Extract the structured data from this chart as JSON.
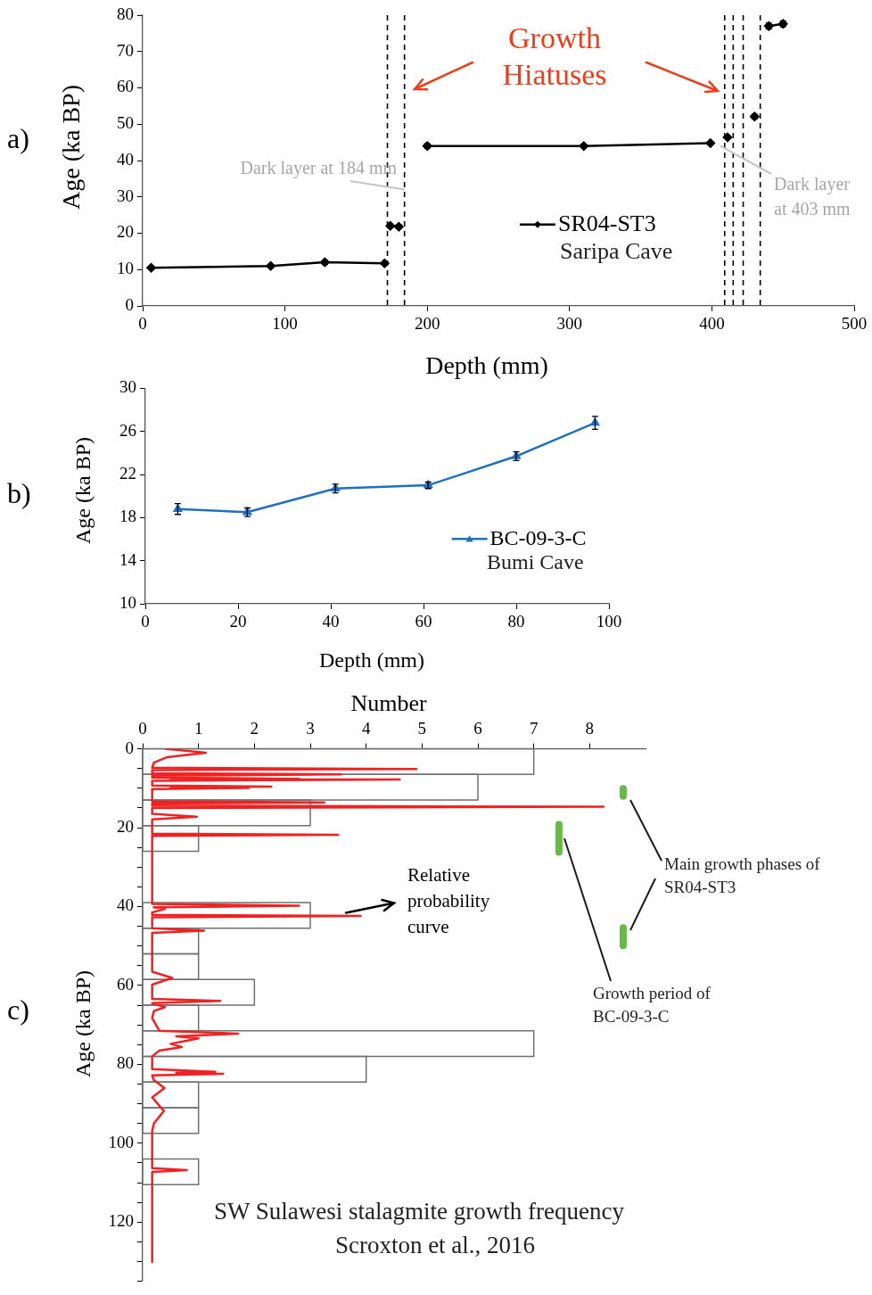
{
  "chart_data": [
    {
      "type": "line",
      "title": "a)",
      "xlabel": "Depth (mm)",
      "ylabel": "Age (ka BP)",
      "xlim": [
        0,
        500
      ],
      "xticks": [
        0,
        100,
        200,
        300,
        400,
        500
      ],
      "ylim": [
        0,
        80
      ],
      "yticks": [
        0,
        10,
        20,
        30,
        40,
        50,
        60,
        70,
        80
      ],
      "marker": "diamond",
      "legend": "bottom right",
      "series": [
        {
          "name": "SR04-ST3",
          "color": "#000000",
          "x": [
            6,
            90,
            128,
            170,
            172,
            174,
            180,
            190,
            200,
            310,
            399,
            405,
            411,
            420,
            430,
            435,
            440,
            450
          ],
          "values": [
            10.5,
            11,
            12,
            11.7,
            null,
            22,
            21.8,
            null,
            44,
            44,
            44.8,
            null,
            46.4,
            null,
            52.1,
            null,
            77,
            77.6
          ],
          "errors": [
            null,
            null,
            0.6,
            null,
            null,
            0.5,
            0.5,
            null,
            0.6,
            null,
            null,
            null,
            null,
            null,
            0.6,
            null,
            0.8,
            0.8
          ]
        }
      ],
      "ref_lines": [
        {
          "axis": "x",
          "value": 172,
          "color": "#000000",
          "line_style": "dashed"
        },
        {
          "axis": "x",
          "value": 184,
          "color": "#000000",
          "line_style": "dashed"
        },
        {
          "axis": "x",
          "value": 409,
          "color": "#000000",
          "line_style": "dashed"
        },
        {
          "axis": "x",
          "value": 415,
          "color": "#000000",
          "line_style": "dashed"
        },
        {
          "axis": "x",
          "value": 422,
          "color": "#000000",
          "line_style": "dashed"
        },
        {
          "axis": "x",
          "value": 434,
          "color": "#000000",
          "line_style": "dashed"
        }
      ],
      "annotations": [
        "Growth Hiatuses",
        {
          "text": "Dark layer at 184 mm",
          "x": 184,
          "y": 32
        },
        {
          "text": "Dark layer at 403 mm",
          "x": 406,
          "y": 44
        },
        "Saripa Cave"
      ]
    },
    {
      "type": "line",
      "title": "b)",
      "xlabel": "Depth (mm)",
      "ylabel": "Age (ka BP)",
      "xlim": [
        0,
        100
      ],
      "xticks": [
        0,
        20,
        40,
        60,
        80,
        100
      ],
      "ylim": [
        10,
        30
      ],
      "yticks": [
        10,
        14,
        18,
        22,
        26,
        30
      ],
      "marker": "triangle",
      "legend": "bottom right",
      "series": [
        {
          "name": "BC-09-3-C",
          "color": "#2070c0",
          "x": [
            7,
            22,
            41,
            61,
            80,
            97
          ],
          "values": [
            18.8,
            18.5,
            20.7,
            21.0,
            23.7,
            26.8
          ],
          "errors": [
            0.5,
            0.4,
            0.4,
            0.3,
            0.4,
            0.6
          ]
        }
      ],
      "annotations": [
        "Bumi Cave"
      ]
    },
    {
      "type": "histogram",
      "orientation": "horizontal",
      "title": "c)",
      "xlabel": "Number",
      "ylabel": "Age (ka BP)",
      "xlim": [
        0,
        9
      ],
      "xticks": [
        0,
        1,
        2,
        3,
        4,
        5,
        6,
        7,
        8
      ],
      "ylim": [
        135,
        0
      ],
      "yticks": [
        0,
        {
          "value": 5,
          "label": null
        },
        {
          "value": 10,
          "label": null
        },
        {
          "value": 15,
          "label": null
        },
        20,
        {
          "value": 25,
          "label": null
        },
        {
          "value": 30,
          "label": null
        },
        {
          "value": 35,
          "label": null
        },
        40,
        {
          "value": 45,
          "label": null
        },
        {
          "value": 50,
          "label": null
        },
        {
          "value": 55,
          "label": null
        },
        60,
        {
          "value": 65,
          "label": null
        },
        {
          "value": 70,
          "label": null
        },
        {
          "value": 75,
          "label": null
        },
        80,
        {
          "value": 85,
          "label": null
        },
        {
          "value": 90,
          "label": null
        },
        {
          "value": 95,
          "label": null
        },
        100,
        {
          "value": 105,
          "label": null
        },
        {
          "value": 110,
          "label": null
        },
        {
          "value": 115,
          "label": null
        },
        120,
        {
          "value": 125,
          "label": null
        },
        {
          "value": 130,
          "label": null
        },
        {
          "value": 135,
          "label": null
        }
      ],
      "bins": [
        0,
        6.5,
        13,
        19.5,
        26,
        32.5,
        39,
        45.5,
        52,
        58.5,
        65,
        71.5,
        78,
        84.5,
        91,
        97.5,
        104,
        110.5
      ],
      "values": [
        7,
        6,
        3,
        1,
        0,
        0,
        3,
        1,
        1,
        2,
        1,
        7,
        4,
        1,
        1,
        0,
        1
      ],
      "color": "#707070",
      "series": [
        {
          "type": "line",
          "color": "#ee2222",
          "x": [
            0,
            1,
            2.1,
            3.5,
            4.8,
            5.1,
            5.4,
            6.2,
            6.5,
            6.8,
            7.3,
            7.6,
            7.7,
            7.8,
            8.1,
            9.3,
            9.6,
            9.75,
            9.9,
            10.2,
            13.3,
            13.6,
            13.9,
            14.4,
            14.7,
            15.0,
            16.5,
            17.2,
            17.9,
            21.5,
            21.8,
            22.1,
            39.3,
            39.8,
            40.2,
            40.6,
            41.5,
            42.1,
            42.4,
            42.7,
            45.5,
            46.1,
            46.7,
            56.5,
            58.1,
            59.8,
            63.4,
            63.9,
            64.5,
            65.5,
            66.5,
            68.3,
            71.5,
            72.2,
            72.9,
            73.4,
            74.0,
            74.8,
            75.6,
            76.5,
            78,
            81.2,
            81.9,
            82.1,
            82.4,
            82.8,
            84,
            86,
            88.4,
            91.8,
            95,
            97,
            106.3,
            106.8,
            107.3,
            130.1
          ],
          "values": [
            0.4,
            1.13,
            0.44,
            0.2,
            0.17,
            4.9,
            0.17,
            0.17,
            3.55,
            0.17,
            0.17,
            2.8,
            0.5,
            4.6,
            0.17,
            0.17,
            2.3,
            0.5,
            1.9,
            0.17,
            0.17,
            3.25,
            0.17,
            0.17,
            8.25,
            0.17,
            0.17,
            0.97,
            0.17,
            0.17,
            3.5,
            0.17,
            0.17,
            2.8,
            0.2,
            0.4,
            0.17,
            0.17,
            3.9,
            0.17,
            0.17,
            1.1,
            0.17,
            0.17,
            0.53,
            0.17,
            0.17,
            1.39,
            0.17,
            0.4,
            0.2,
            0.17,
            0.3,
            1.71,
            0.6,
            1.0,
            0.8,
            0.5,
            0.7,
            0.3,
            0.17,
            0.17,
            1.3,
            0.6,
            1.44,
            0.17,
            0.2,
            0.39,
            0.17,
            0.38,
            0.2,
            0.17,
            0.17,
            0.79,
            0.17,
            0.17
          ]
        },
        {
          "type": "line",
          "name": "Growth period of BC-09-3-C",
          "color": "#66bb44",
          "x": [
            19.2,
            26.2
          ],
          "values": [
            7.45,
            7.45
          ]
        },
        {
          "type": "line",
          "name": "Main growth phases of SR04-ST3",
          "color": "#66bb44",
          "x": [
            10.1,
            12.0,
            30,
            45.4,
            49.9
          ],
          "values": [
            8.6,
            8.6,
            null,
            8.6,
            8.6
          ]
        }
      ],
      "annotations": [
        {
          "text": "Relative probability curve",
          "x": 3.6,
          "y": 41.4
        },
        "SW Sulawesi stalagmite growth frequency",
        "Scroxton et al., 2016"
      ]
    }
  ]
}
